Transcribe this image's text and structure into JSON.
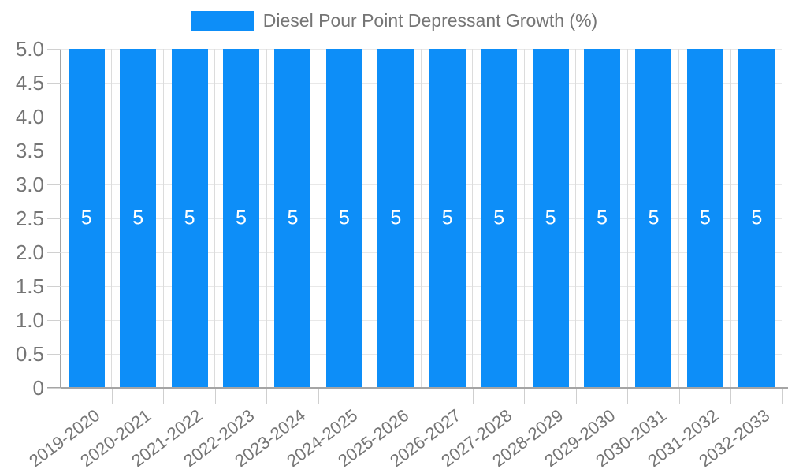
{
  "chart_data": {
    "type": "bar",
    "title": "Diesel Pour Point Depressant Growth (%)",
    "categories": [
      "2019-2020",
      "2020-2021",
      "2021-2022",
      "2022-2023",
      "2023-2024",
      "2024-2025",
      "2025-2026",
      "2026-2027",
      "2027-2028",
      "2028-2029",
      "2029-2030",
      "2030-2031",
      "2031-2032",
      "2032-2033"
    ],
    "values": [
      5,
      5,
      5,
      5,
      5,
      5,
      5,
      5,
      5,
      5,
      5,
      5,
      5,
      5
    ],
    "value_labels": [
      "5",
      "5",
      "5",
      "5",
      "5",
      "5",
      "5",
      "5",
      "5",
      "5",
      "5",
      "5",
      "5",
      "5"
    ],
    "xlabel": "",
    "ylabel": "",
    "ylim": [
      0,
      5
    ],
    "ytick_labels": [
      "5.0",
      "4.5",
      "4.0",
      "3.5",
      "3.0",
      "2.5",
      "2.0",
      "1.5",
      "1.0",
      "0.5",
      "0"
    ],
    "grid": true,
    "legend_position": "top",
    "bar_color": "#0d8ef8",
    "value_label_color": "#ffffff",
    "axis_label_color": "#757575",
    "axis_line_color": "#a5a5a5",
    "grid_color": "#e8e8e8"
  },
  "legend": {
    "items": [
      {
        "label": "Diesel Pour Point Depressant Growth (%)",
        "color": "#0d8ef8"
      }
    ]
  }
}
